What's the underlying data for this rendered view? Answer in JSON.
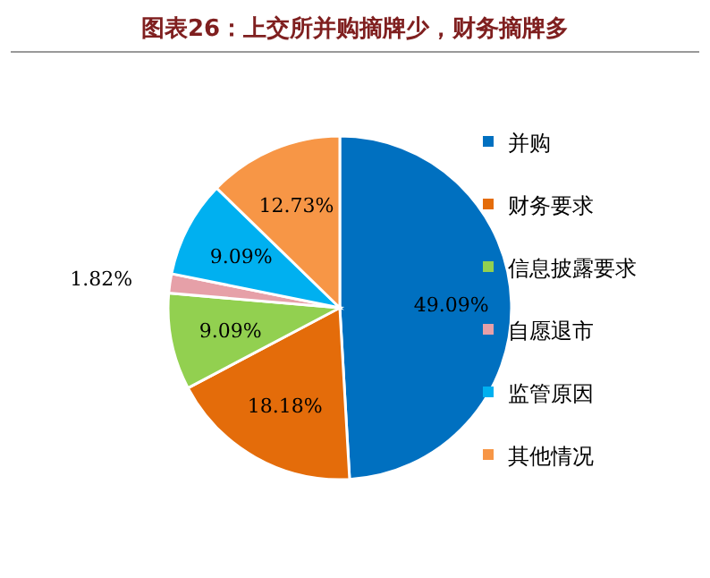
{
  "chart_data": {
    "type": "pie",
    "title": "图表26：上交所并购摘牌少，财务摘牌多",
    "categories": [
      "并购",
      "财务要求",
      "信息披露要求",
      "自愿退市",
      "监管原因",
      "其他情况"
    ],
    "values": [
      49.09,
      18.18,
      9.09,
      1.82,
      9.09,
      12.73
    ],
    "colors": [
      "#0070c0",
      "#e46c0a",
      "#92d050",
      "#e6a0a8",
      "#00b0f0",
      "#f79646"
    ],
    "value_labels": [
      "49.09%",
      "18.18%",
      "9.09%",
      "1.82%",
      "9.09%",
      "12.73%"
    ],
    "legend": "right"
  }
}
